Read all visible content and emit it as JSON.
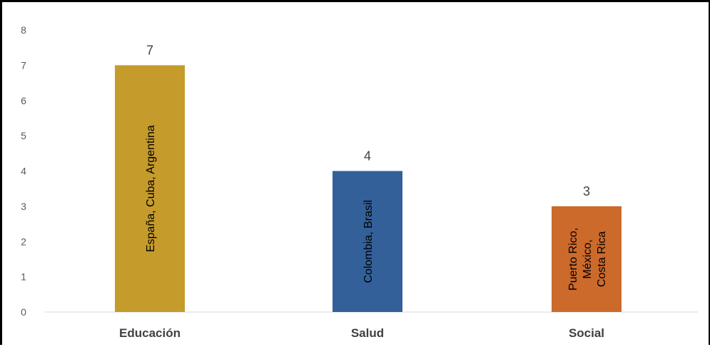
{
  "chart_data": {
    "type": "bar",
    "categories": [
      "Educación",
      "Salud",
      "Social"
    ],
    "values": [
      7,
      4,
      3
    ],
    "data_labels": [
      "7",
      "4",
      "3"
    ],
    "bar_annotations": [
      [
        "España, Cuba, Argentina"
      ],
      [
        "Colombia, Brasil"
      ],
      [
        "Puerto Rico,",
        "México,",
        "Costa Rica"
      ]
    ],
    "colors": [
      "#C59B2B",
      "#336099",
      "#CC6A2C"
    ],
    "ylim": [
      0,
      8
    ],
    "yticks": [
      0,
      1,
      2,
      3,
      4,
      5,
      6,
      7,
      8
    ],
    "grid": false,
    "legend": "none",
    "title": "",
    "xlabel": "",
    "ylabel": ""
  }
}
